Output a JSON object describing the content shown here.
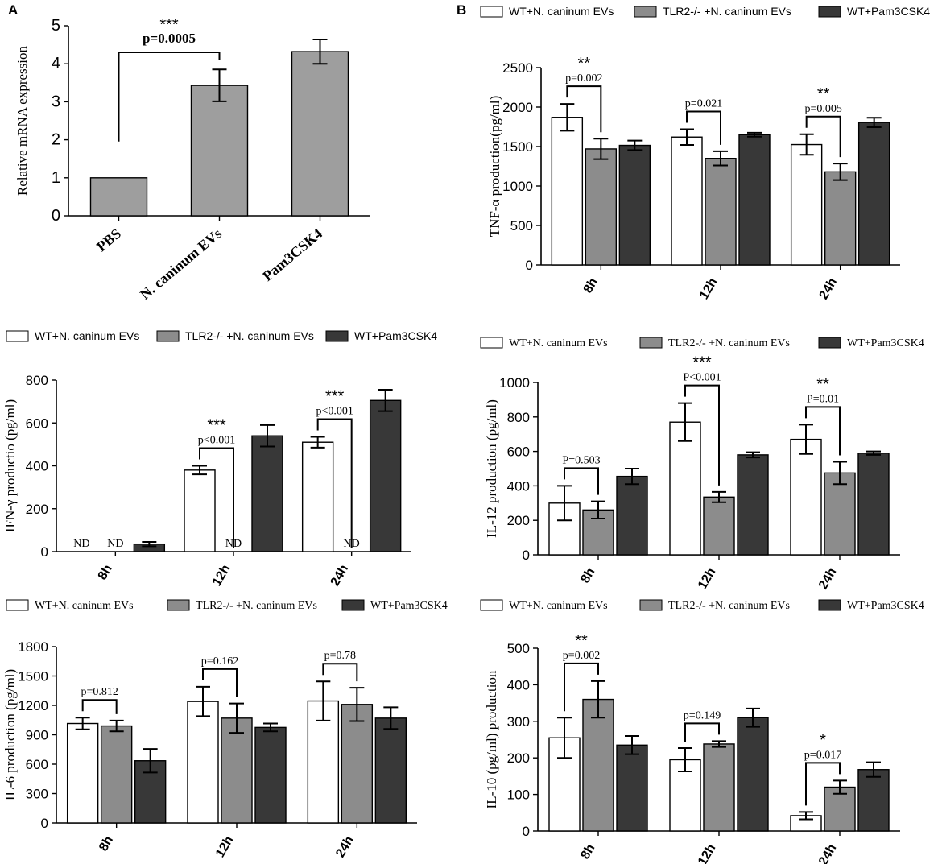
{
  "colors": {
    "white_fill": "#ffffff",
    "gray_fill": "#8c8c8c",
    "dark_fill": "#383838",
    "panel_a_fill": "#9e9e9e",
    "stroke": "#000000"
  },
  "chart_data": [
    {
      "id": "A",
      "panel_label": "A",
      "type": "bar",
      "ylabel": "Relative mRNA expression",
      "ylim": [
        0,
        5
      ],
      "yticks": [
        0,
        1,
        2,
        3,
        4,
        5
      ],
      "categories": [
        "PBS",
        "N. caninum  EVs",
        "Pam3CSK4"
      ],
      "values": [
        1.0,
        3.43,
        4.32
      ],
      "errors": [
        0,
        0.42,
        0.32
      ],
      "annotations": [
        {
          "from": 0,
          "to": 1,
          "stars": "***",
          "p": "p=0.0005"
        }
      ]
    },
    {
      "id": "B",
      "panel_label": "B",
      "type": "bar",
      "ylabel": "TNF-α production(pg/ml)",
      "ylim": [
        0,
        2500
      ],
      "yticks": [
        0,
        500,
        1000,
        1500,
        2000,
        2500
      ],
      "categories": [
        "8h",
        "12h",
        "24h"
      ],
      "legend": [
        "WT+N. caninum EVs",
        "TLR2-/- +N. caninum EVs",
        "WT+Pam3CSK4"
      ],
      "series": [
        {
          "name": "WT+N. caninum EVs",
          "values": [
            1870,
            1620,
            1525
          ],
          "errors": [
            170,
            100,
            130
          ]
        },
        {
          "name": "TLR2-/- +N. caninum EVs",
          "values": [
            1470,
            1350,
            1180
          ],
          "errors": [
            130,
            90,
            105
          ]
        },
        {
          "name": "WT+Pam3CSK4",
          "values": [
            1515,
            1650,
            1805
          ],
          "errors": [
            60,
            25,
            60
          ]
        }
      ],
      "annotations": [
        {
          "group": 0,
          "stars": "**",
          "p": "p=0.002"
        },
        {
          "group": 1,
          "stars": "",
          "p": "p=0.021"
        },
        {
          "group": 2,
          "stars": "**",
          "p": "p=0.005"
        }
      ]
    },
    {
      "id": "C",
      "panel_label": "",
      "type": "bar",
      "ylabel": "IFN-γ productio (pg/ml)",
      "ylim": [
        0,
        800
      ],
      "yticks": [
        0,
        200,
        400,
        600,
        800
      ],
      "categories": [
        "8h",
        "12h",
        "24h"
      ],
      "legend": [
        "WT+N. caninum EVs",
        "TLR2-/- +N. caninum EVs",
        "WT+Pam3CSK4"
      ],
      "series": [
        {
          "name": "WT+N. caninum EVs",
          "values": [
            0,
            380,
            510
          ],
          "errors": [
            0,
            20,
            25
          ]
        },
        {
          "name": "TLR2-/- +N. caninum EVs",
          "values": [
            0,
            0,
            0
          ],
          "errors": [
            0,
            0,
            0
          ]
        },
        {
          "name": "WT+Pam3CSK4",
          "values": [
            35,
            540,
            705
          ],
          "errors": [
            10,
            50,
            50
          ]
        }
      ],
      "nd": [
        [
          0,
          0
        ],
        [
          0,
          1
        ],
        [
          1,
          1
        ],
        [
          2,
          1
        ]
      ],
      "nd_label": "ND",
      "annotations": [
        {
          "group": 1,
          "stars": "***",
          "p": "p<0.001"
        },
        {
          "group": 2,
          "stars": "***",
          "p": "p<0.001"
        }
      ]
    },
    {
      "id": "D",
      "panel_label": "",
      "type": "bar",
      "ylabel": "IL-12 production (pg/ml)",
      "ylim": [
        0,
        1000
      ],
      "yticks": [
        0,
        200,
        400,
        600,
        800,
        1000
      ],
      "categories": [
        "8h",
        "12h",
        "24h"
      ],
      "legend": [
        "WT+N. caninum EVs",
        "TLR2-/- +N. caninum EVs",
        "WT+Pam3CSK4"
      ],
      "series": [
        {
          "name": "WT+N. caninum EVs",
          "values": [
            300,
            770,
            670
          ],
          "errors": [
            100,
            110,
            85
          ]
        },
        {
          "name": "TLR2-/- +N. caninum EVs",
          "values": [
            260,
            335,
            475
          ],
          "errors": [
            50,
            30,
            65
          ]
        },
        {
          "name": "WT+Pam3CSK4",
          "values": [
            455,
            580,
            590
          ],
          "errors": [
            45,
            15,
            10
          ]
        }
      ],
      "annotations": [
        {
          "group": 0,
          "stars": "",
          "p": "P=0.503"
        },
        {
          "group": 1,
          "stars": "***",
          "p": "P<0.001"
        },
        {
          "group": 2,
          "stars": "**",
          "p": "P=0.01"
        }
      ]
    },
    {
      "id": "E",
      "panel_label": "",
      "type": "bar",
      "ylabel": "IL-6 production (pg/ml)",
      "ylim": [
        0,
        1800
      ],
      "yticks": [
        0,
        300,
        600,
        900,
        1200,
        1500,
        1800
      ],
      "categories": [
        "8h",
        "12h",
        "24h"
      ],
      "legend": [
        "WT+N. caninum EVs",
        "TLR2-/- +N. caninum EVs",
        "WT+Pam3CSK4"
      ],
      "series": [
        {
          "name": "WT+N. caninum EVs",
          "values": [
            1015,
            1240,
            1245
          ],
          "errors": [
            60,
            150,
            200
          ]
        },
        {
          "name": "TLR2-/- +N. caninum EVs",
          "values": [
            990,
            1070,
            1210
          ],
          "errors": [
            55,
            150,
            170
          ]
        },
        {
          "name": "WT+Pam3CSK4",
          "values": [
            635,
            975,
            1070
          ],
          "errors": [
            120,
            40,
            110
          ]
        }
      ],
      "annotations": [
        {
          "group": 0,
          "stars": "",
          "p": "p=0.812"
        },
        {
          "group": 1,
          "stars": "",
          "p": "p=0.162"
        },
        {
          "group": 2,
          "stars": "",
          "p": "p=0.78"
        }
      ]
    },
    {
      "id": "F",
      "panel_label": "",
      "type": "bar",
      "ylabel": "IL-10 (pg/ml) production",
      "ylim": [
        0,
        500
      ],
      "yticks": [
        0,
        100,
        200,
        300,
        400,
        500
      ],
      "categories": [
        "8h",
        "12h",
        "24h"
      ],
      "legend": [
        "WT+N. caninum EVs",
        "TLR2-/- +N. caninum EVs",
        "WT+Pam3CSK4"
      ],
      "series": [
        {
          "name": "WT+N. caninum EVs",
          "values": [
            255,
            195,
            42
          ],
          "errors": [
            55,
            32,
            10
          ]
        },
        {
          "name": "TLR2-/- +N. caninum EVs",
          "values": [
            360,
            238,
            120
          ],
          "errors": [
            50,
            8,
            18
          ]
        },
        {
          "name": "WT+Pam3CSK4",
          "values": [
            235,
            310,
            168
          ],
          "errors": [
            25,
            25,
            20
          ]
        }
      ],
      "annotations": [
        {
          "group": 0,
          "stars": "**",
          "p": "p=0.002"
        },
        {
          "group": 1,
          "stars": "",
          "p": "p=0.149"
        },
        {
          "group": 2,
          "stars": "*",
          "p": "p=0.017"
        }
      ]
    }
  ]
}
